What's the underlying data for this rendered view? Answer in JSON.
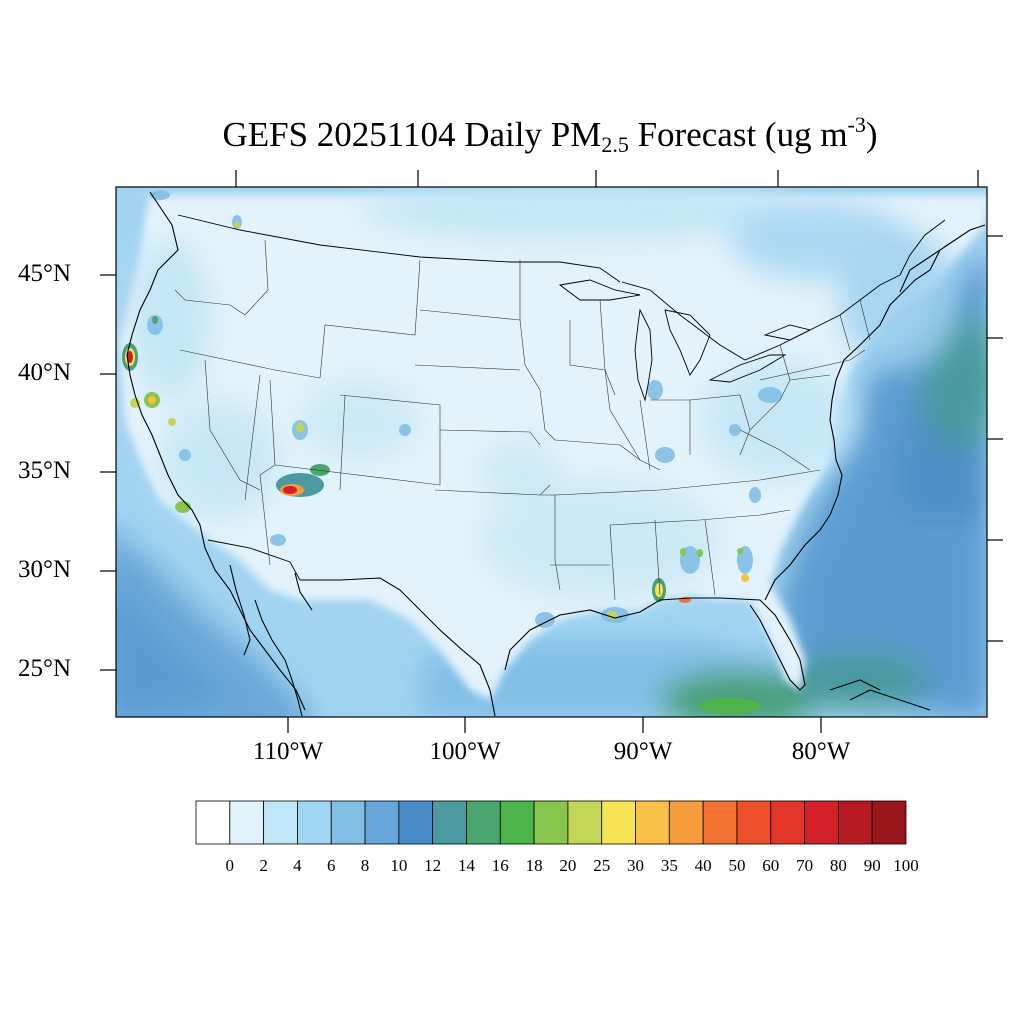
{
  "title": {
    "main": "GEFS 20251104 Daily PM",
    "subscript": "2.5",
    "rest": " Forecast (ug m",
    "superscript": "-3",
    "close": ")"
  },
  "axes": {
    "lat_labels": [
      "45°N",
      "40°N",
      "35°N",
      "30°N",
      "25°N"
    ],
    "lon_labels": [
      "110°W",
      "100°W",
      "90°W",
      "80°W"
    ]
  },
  "legend": {
    "levels": [
      "0",
      "2",
      "4",
      "6",
      "8",
      "10",
      "12",
      "14",
      "16",
      "18",
      "20",
      "25",
      "30",
      "35",
      "40",
      "50",
      "60",
      "70",
      "80",
      "90",
      "100"
    ],
    "colors": [
      "#ffffff",
      "#e0f3fb",
      "#bfe6f7",
      "#9fd6f2",
      "#82bfe4",
      "#67a6da",
      "#4a8cc9",
      "#4a9aa0",
      "#49a66f",
      "#4cb449",
      "#87c54c",
      "#c4d656",
      "#f6e455",
      "#f8c045",
      "#f59c3c",
      "#f27031",
      "#ec512c",
      "#e23527",
      "#d31f28",
      "#b81a24",
      "#981619"
    ]
  },
  "map_data": {
    "region": "CONUS",
    "variable": "PM2.5",
    "hotspots": [
      {
        "place": "Northern California coast",
        "level": "80-100"
      },
      {
        "place": "Central California",
        "level": "35-50"
      },
      {
        "place": "Central Arizona",
        "level": "70-100"
      },
      {
        "place": "Southern California",
        "level": "16-20"
      },
      {
        "place": "Mobile Bay area",
        "level": "30-40"
      },
      {
        "place": "Florida Panhandle",
        "level": "40-60"
      },
      {
        "place": "Gulf of Mexico offshore",
        "level": "14-18"
      }
    ]
  }
}
